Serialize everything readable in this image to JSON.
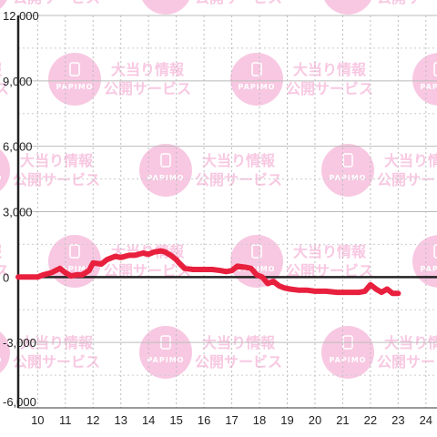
{
  "watermark": {
    "brand": "PAPIMO",
    "line1": "大当り情報",
    "line2": "公開サービス",
    "color": "#f8c8e2"
  },
  "chart_data": {
    "type": "line",
    "title": "",
    "xlabel": "",
    "ylabel": "",
    "xlim": [
      9.3,
      24.4
    ],
    "ylim": [
      -6000,
      12000
    ],
    "x_ticks": [
      10,
      11,
      12,
      13,
      14,
      15,
      16,
      17,
      18,
      19,
      20,
      21,
      22,
      23,
      24
    ],
    "x_tick_labels": [
      "10",
      "11",
      "12",
      "13",
      "14",
      "15",
      "16",
      "17",
      "18",
      "19",
      "20",
      "21",
      "22",
      "23",
      "24"
    ],
    "y_ticks": [
      12000,
      9000,
      6000,
      3000,
      0,
      -3000,
      -6000
    ],
    "y_tick_labels": [
      "12,000",
      "9,000",
      "6,000",
      "3,000",
      "0",
      "-3,000",
      "-6,000"
    ],
    "grid": true,
    "line_color": "#e8203e",
    "series": [
      {
        "x": [
          9.3,
          10.0,
          10.2,
          10.5,
          10.8,
          11.0,
          11.2,
          11.4,
          11.6,
          11.85,
          12.0,
          12.3,
          12.5,
          12.8,
          13.0,
          13.3,
          13.5,
          13.8,
          14.0,
          14.2,
          14.45,
          14.6,
          14.8,
          15.0,
          15.1,
          15.3,
          15.6,
          16.0,
          16.3,
          16.6,
          16.8,
          17.0,
          17.2,
          17.5,
          17.7,
          17.9,
          18.1,
          18.3,
          18.5,
          18.7,
          18.9,
          19.1,
          19.4,
          19.7,
          20.0,
          20.4,
          20.8,
          21.2,
          21.6,
          21.8,
          22.0,
          22.2,
          22.4,
          22.6,
          22.8,
          23.0
        ],
        "y": [
          0,
          0,
          100,
          200,
          400,
          200,
          50,
          100,
          100,
          300,
          650,
          600,
          800,
          950,
          900,
          1000,
          1000,
          1100,
          1050,
          1150,
          1200,
          1150,
          1000,
          800,
          650,
          400,
          350,
          350,
          350,
          300,
          250,
          300,
          500,
          450,
          400,
          100,
          0,
          -300,
          -200,
          -400,
          -500,
          -550,
          -600,
          -600,
          -650,
          -650,
          -700,
          -700,
          -700,
          -650,
          -350,
          -550,
          -700,
          -550,
          -750,
          -750
        ]
      }
    ]
  }
}
